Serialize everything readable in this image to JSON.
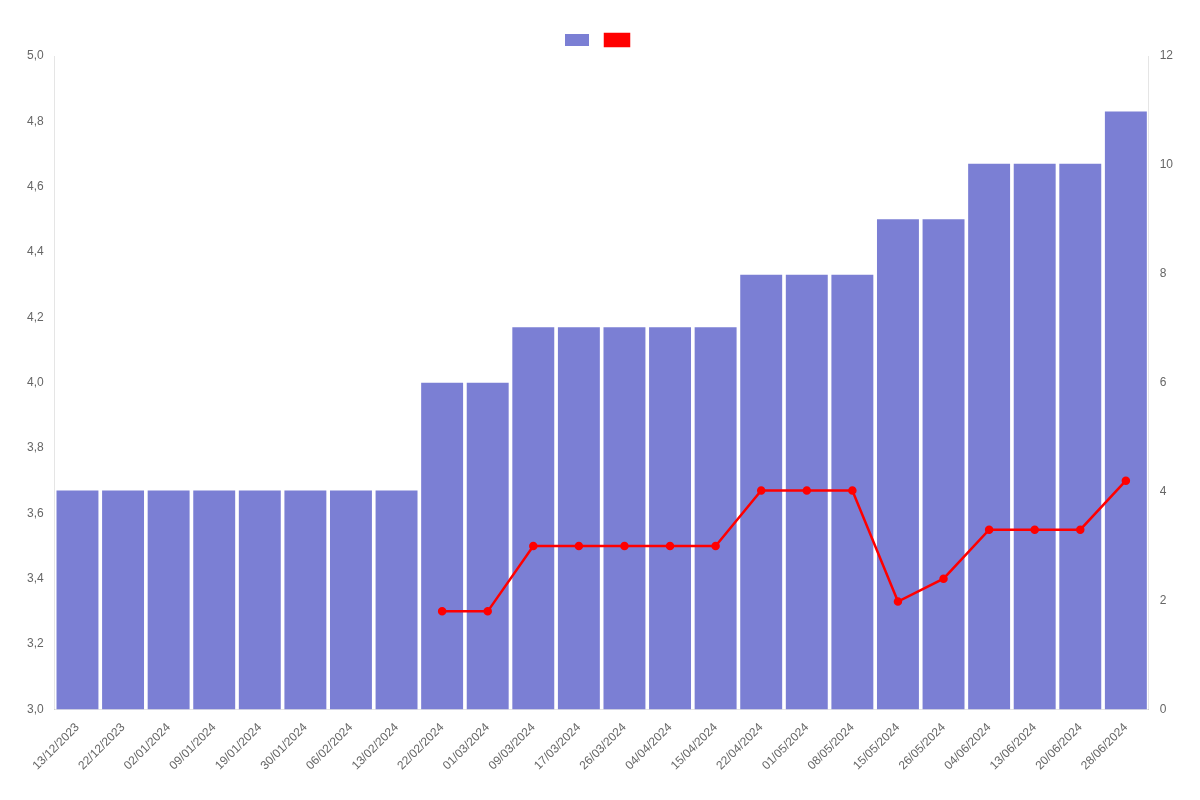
{
  "chart_data": {
    "type": "bar",
    "categories": [
      "13/12/2023",
      "22/12/2023",
      "02/01/2024",
      "09/01/2024",
      "19/01/2024",
      "30/01/2024",
      "06/02/2024",
      "13/02/2024",
      "22/02/2024",
      "01/03/2024",
      "09/03/2024",
      "17/03/2024",
      "26/03/2024",
      "04/04/2024",
      "15/04/2024",
      "22/04/2024",
      "01/05/2024",
      "08/05/2024",
      "15/05/2024",
      "26/05/2024",
      "04/06/2024",
      "13/06/2024",
      "20/06/2024",
      "28/06/2024"
    ],
    "series": [
      {
        "type": "bar",
        "color": "#7b7fd4",
        "values": [
          3.67,
          3.67,
          3.67,
          3.67,
          3.67,
          3.67,
          3.67,
          3.67,
          4.0,
          4.0,
          4.17,
          4.17,
          4.17,
          4.17,
          4.17,
          4.33,
          4.33,
          4.33,
          4.5,
          4.5,
          4.67,
          4.67,
          4.67,
          4.83
        ]
      },
      {
        "type": "line",
        "color": "#ff0000",
        "marker": "circle",
        "values": [
          null,
          null,
          null,
          null,
          null,
          null,
          null,
          null,
          3.3,
          3.3,
          3.5,
          3.5,
          3.5,
          3.5,
          3.5,
          3.67,
          3.67,
          3.67,
          3.33,
          3.4,
          3.55,
          3.55,
          3.55,
          3.7
        ]
      }
    ],
    "ylim": [
      3.0,
      5.0
    ],
    "yticks": [
      {
        "value": 3.0,
        "label": "3,0"
      },
      {
        "value": 3.2,
        "label": "3,2"
      },
      {
        "value": 3.4,
        "label": "3,4"
      },
      {
        "value": 3.6,
        "label": "3,6"
      },
      {
        "value": 3.8,
        "label": "3,8"
      },
      {
        "value": 4.0,
        "label": "4,0"
      },
      {
        "value": 4.2,
        "label": "4,2"
      },
      {
        "value": 4.4,
        "label": "4,4"
      },
      {
        "value": 4.6,
        "label": "4,6"
      },
      {
        "value": 4.8,
        "label": "4,8"
      },
      {
        "value": 5.0,
        "label": "5,0"
      }
    ],
    "y2lim": [
      0,
      12
    ],
    "y2ticks": [
      0,
      2,
      4,
      6,
      8,
      10,
      12
    ],
    "grid": false,
    "legend": "top"
  }
}
